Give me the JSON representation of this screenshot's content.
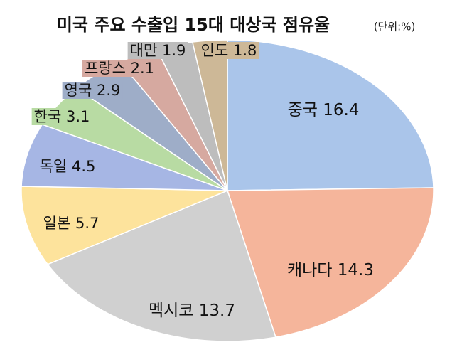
{
  "chart_data": {
    "type": "pie",
    "title": "미국 주요 수출입 15대 대상국 점유율",
    "subtitle": "(단위:%)",
    "categories": [
      "중국",
      "캐나다",
      "멕시코",
      "일본",
      "독일",
      "한국",
      "영국",
      "프랑스",
      "대만",
      "인도"
    ],
    "values": [
      16.4,
      14.3,
      13.7,
      5.7,
      4.5,
      3.1,
      2.9,
      2.1,
      1.9,
      1.8
    ],
    "colors": [
      "#aac5ea",
      "#f5b59b",
      "#d0d0d0",
      "#fde39c",
      "#a6b6e4",
      "#b8dba3",
      "#9eadc8",
      "#d6a9a0",
      "#bdbdbd",
      "#cdb897"
    ]
  }
}
